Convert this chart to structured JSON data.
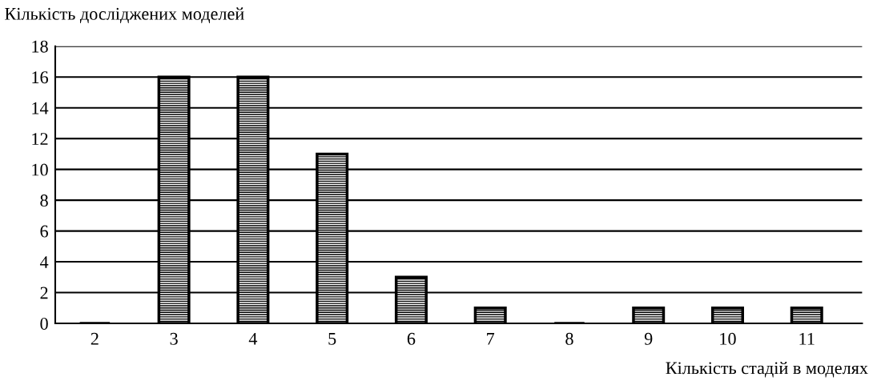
{
  "chart_data": {
    "type": "bar",
    "ylabel": "Кількість досліджених моделей",
    "xlabel": "Кількість стадій в моделях",
    "categories": [
      "2",
      "3",
      "4",
      "5",
      "6",
      "7",
      "8",
      "9",
      "10",
      "11"
    ],
    "values": [
      0,
      16,
      16,
      11,
      3,
      1,
      0,
      1,
      1,
      1
    ],
    "color": "#000000",
    "ylim": [
      0,
      18
    ],
    "yticks": [
      0,
      2,
      4,
      6,
      8,
      10,
      12,
      14,
      16,
      18
    ],
    "grid": "y",
    "legend": false
  }
}
